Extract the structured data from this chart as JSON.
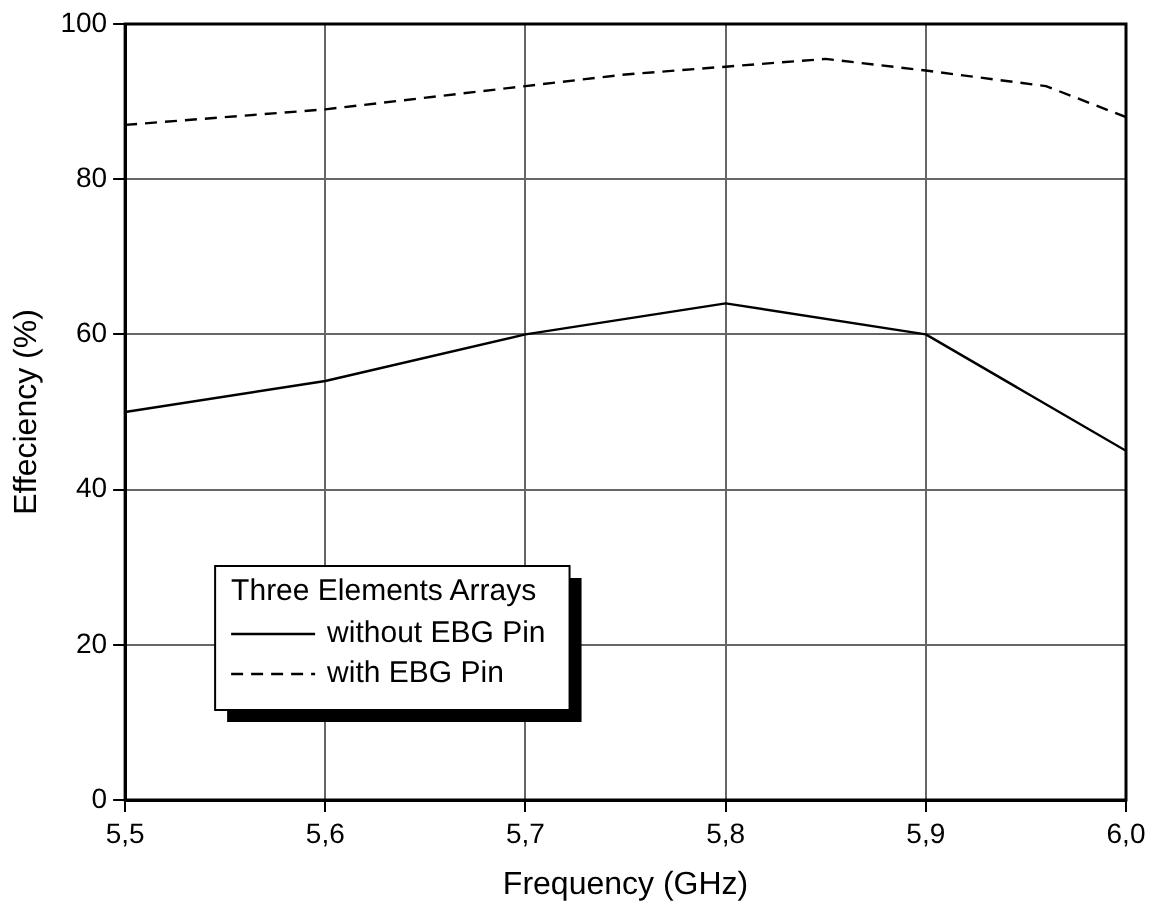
{
  "chart_data": {
    "type": "line",
    "xlabel": "Frequency (GHz)",
    "ylabel": "Effeciency (%)",
    "legend_title": "Three Elements Arrays",
    "xlim": [
      5.5,
      6.0
    ],
    "xticks": [
      {
        "value": 5.5,
        "label": "5,5"
      },
      {
        "value": 5.6,
        "label": "5,6"
      },
      {
        "value": 5.7,
        "label": "5,7"
      },
      {
        "value": 5.8,
        "label": "5,8"
      },
      {
        "value": 5.9,
        "label": "5,9"
      },
      {
        "value": 6.0,
        "label": "6,0"
      }
    ],
    "ylim": [
      0,
      100
    ],
    "yticks": [
      0,
      20,
      40,
      60,
      80,
      100
    ],
    "grid": true,
    "legend": "bottom left",
    "marker": "none",
    "series": [
      {
        "name": "without EBG Pin",
        "color": "#000000",
        "line_style": "solid",
        "x": [
          5.5,
          5.6,
          5.7,
          5.8,
          5.9,
          6.0
        ],
        "values": [
          50,
          54,
          60,
          64,
          60,
          45
        ]
      },
      {
        "name": "with EBG Pin",
        "color": "#000000",
        "line_style": "dashed",
        "x": [
          5.5,
          5.6,
          5.7,
          5.75,
          5.8,
          5.85,
          5.9,
          5.96,
          6.0
        ],
        "values": [
          87,
          89,
          92,
          93.5,
          94.5,
          95.5,
          94,
          92,
          88
        ]
      }
    ]
  }
}
